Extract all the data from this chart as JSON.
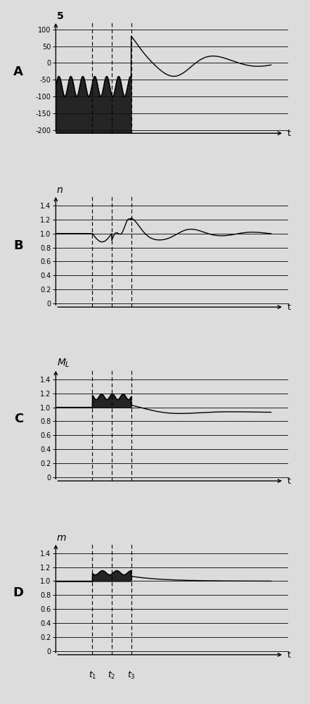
{
  "fig_width": 4.41,
  "fig_height": 10.0,
  "dpi": 100,
  "bg_color": "#dcdcdc",
  "t1": 0.17,
  "t2": 0.26,
  "t3": 0.35,
  "A_ylim": [
    -210,
    125
  ],
  "A_yticks": [
    -200,
    -150,
    -100,
    -50,
    0,
    50,
    100
  ],
  "BCD_ylim": [
    -0.05,
    1.55
  ],
  "BCD_yticks": [
    0,
    0.2,
    0.4,
    0.6,
    0.8,
    1.0,
    1.2,
    1.4
  ],
  "fill_color": "#111111",
  "line_color": "#000000",
  "grid_color": "#000000",
  "dashed_color": "#000000",
  "panel_letters": [
    "A",
    "B",
    "C",
    "D"
  ],
  "y_axis_labels": [
    "5",
    "n",
    "M_L",
    "m"
  ]
}
